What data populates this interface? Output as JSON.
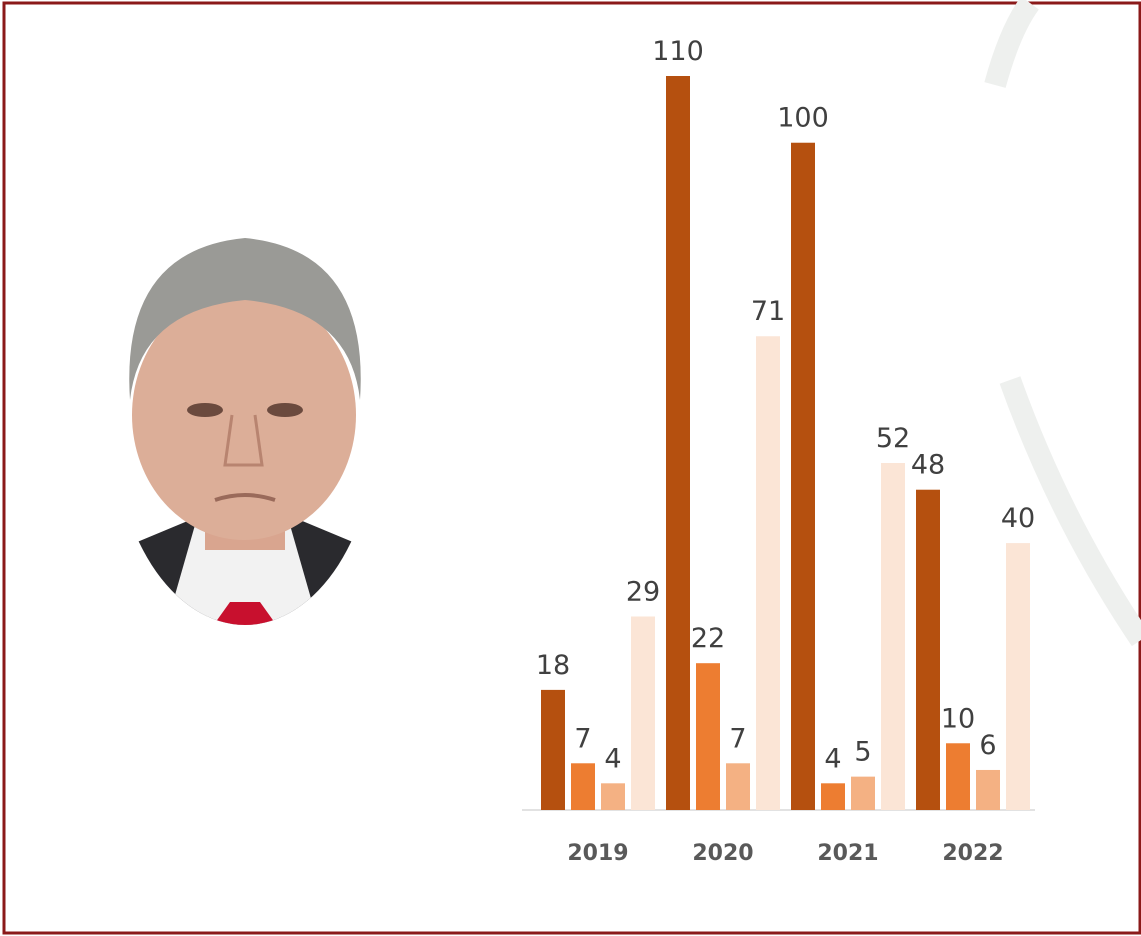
{
  "chart_data": {
    "type": "bar",
    "categories": [
      "2019",
      "2020",
      "2021",
      "2022"
    ],
    "series": [
      {
        "color": "#b5500f",
        "values": [
          18,
          110,
          100,
          48
        ]
      },
      {
        "color": "#ed7d31",
        "values": [
          7,
          22,
          4,
          10
        ]
      },
      {
        "color": "#f4b183",
        "values": [
          4,
          7,
          5,
          6
        ]
      },
      {
        "color": "#fbe5d6",
        "values": [
          29,
          71,
          52,
          40
        ]
      }
    ],
    "ylim": [
      0,
      110
    ]
  }
}
